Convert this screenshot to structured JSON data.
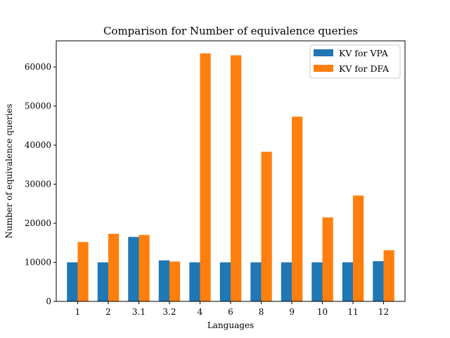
{
  "chart_data": {
    "type": "bar",
    "title": "Comparison for Number of equivalence queries",
    "xlabel": "Languages",
    "ylabel": "Number of equivalence queries",
    "categories": [
      "1",
      "2",
      "3.1",
      "3.2",
      "4",
      "6",
      "8",
      "9",
      "10",
      "11",
      "12"
    ],
    "series": [
      {
        "name": "KV for VPA",
        "color": "#1f77b4",
        "values": [
          10000,
          10000,
          16500,
          10500,
          10000,
          10000,
          10000,
          10000,
          10000,
          10000,
          10300
        ]
      },
      {
        "name": "KV for DFA",
        "color": "#ff7f0e",
        "values": [
          15200,
          17300,
          17000,
          10200,
          63500,
          63000,
          38300,
          47300,
          21500,
          27100,
          13100
        ]
      }
    ],
    "ylim": [
      0,
      66700
    ],
    "yticks": [
      0,
      10000,
      20000,
      30000,
      40000,
      50000,
      60000
    ],
    "legend": "top-right",
    "grid": false
  }
}
